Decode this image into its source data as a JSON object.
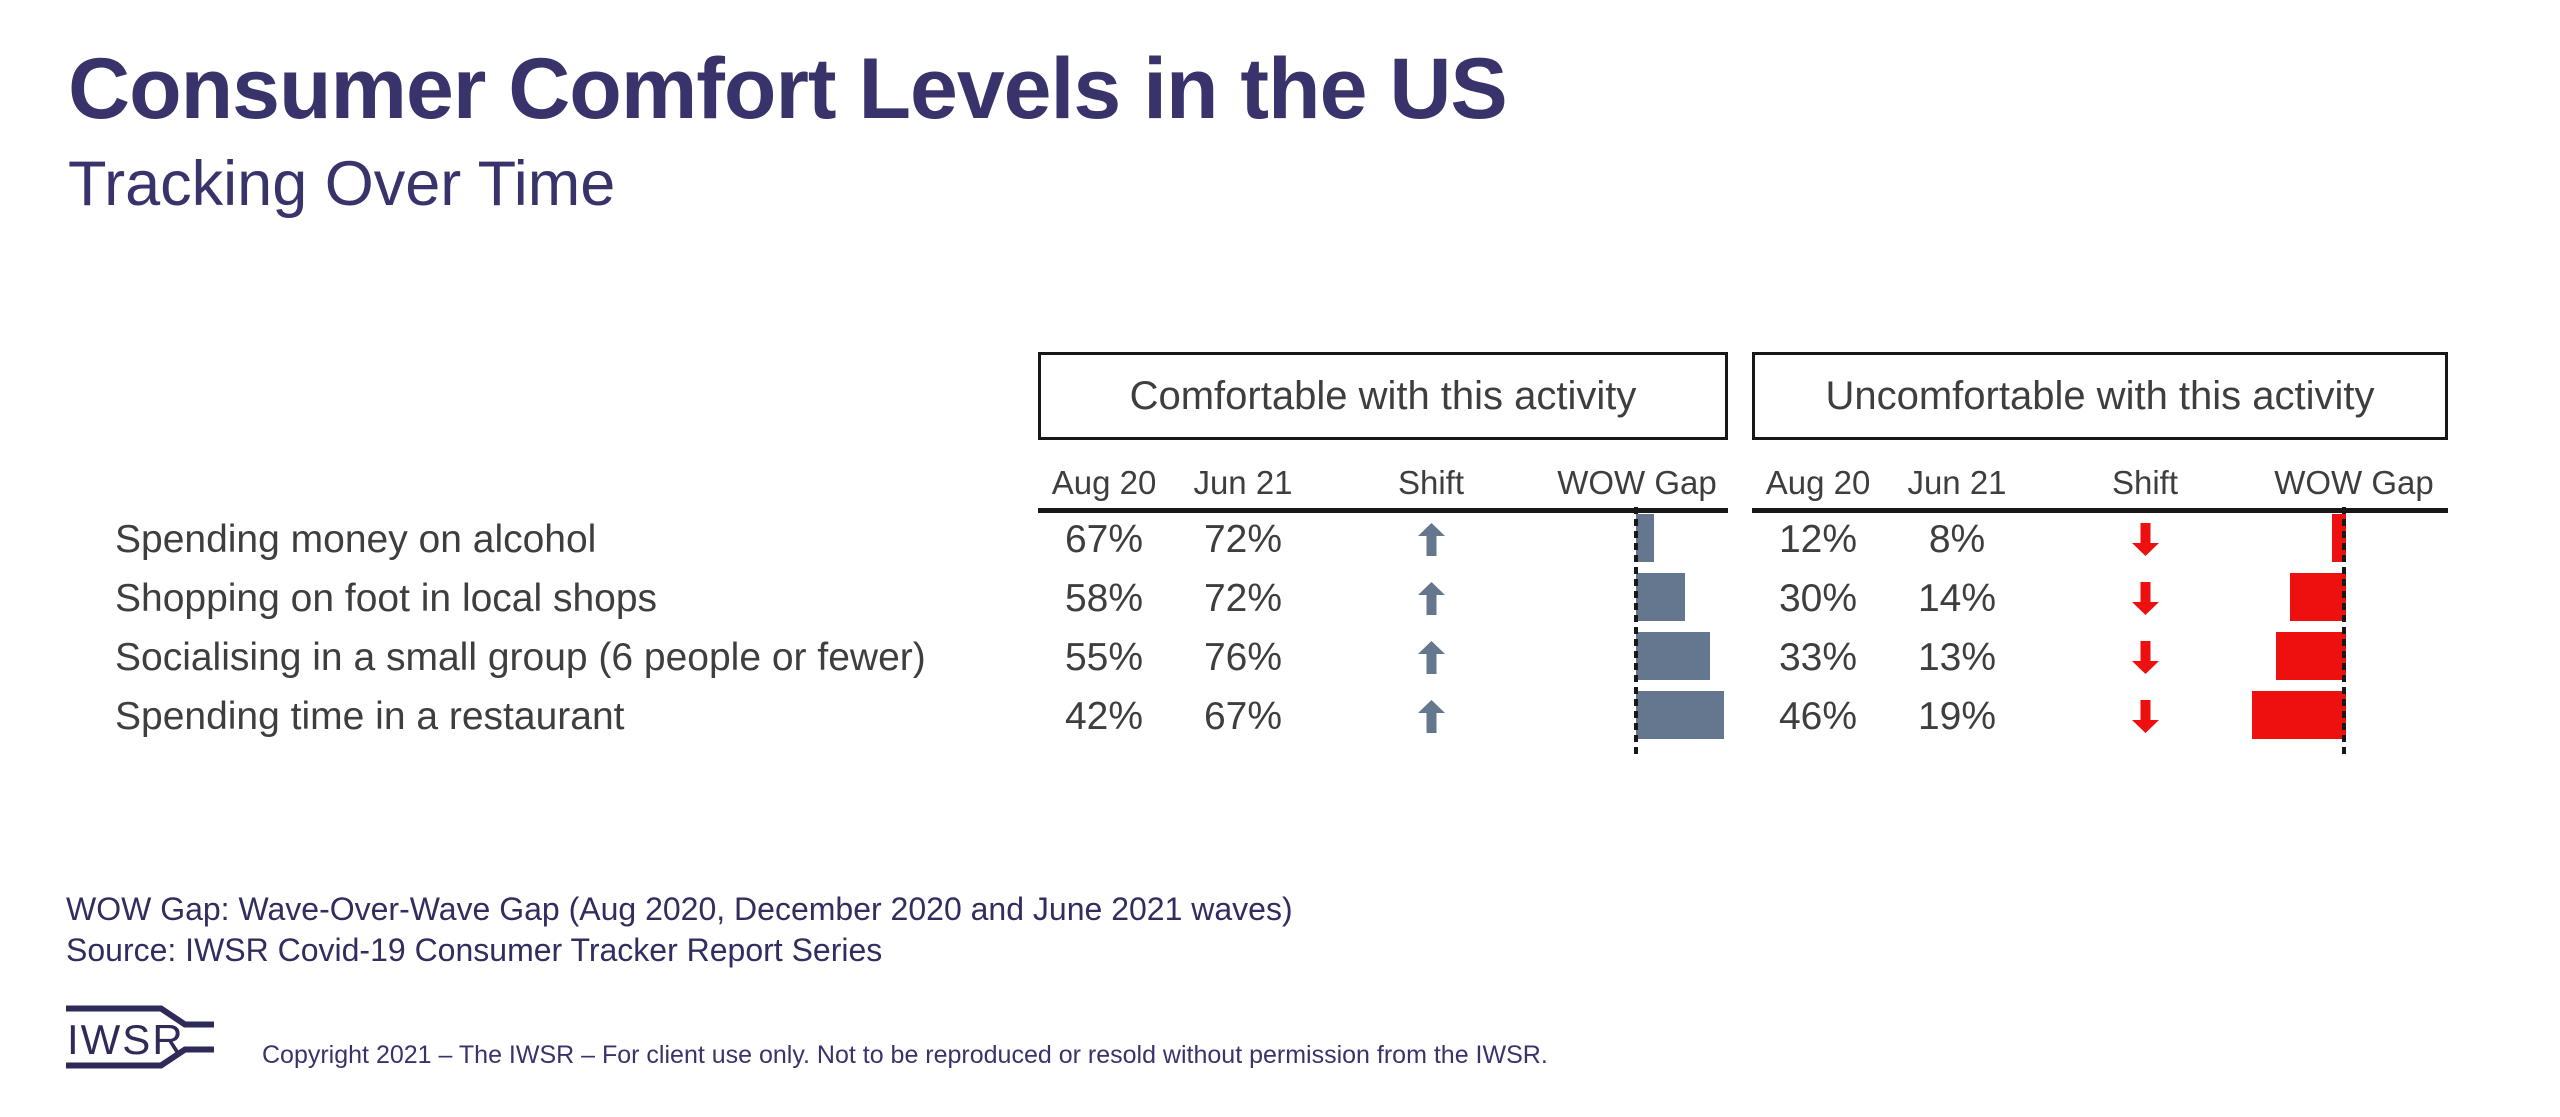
{
  "colors": {
    "navy": "#38346B",
    "text": "#3E3E3E",
    "slate": "#64778F",
    "red": "#EE0F0F",
    "line": "#181818"
  },
  "header": {
    "title": "Consumer Comfort Levels in the US",
    "subtitle": "Tracking Over Time"
  },
  "table": {
    "groups": [
      {
        "title": "Comfortable with this activity",
        "columns": [
          "Aug 20",
          "Jun 21",
          "Shift",
          "WOW Gap"
        ]
      },
      {
        "title": "Uncomfortable with this activity",
        "columns": [
          "Aug 20",
          "Jun 21",
          "Shift",
          "WOW Gap"
        ]
      }
    ],
    "rows": [
      {
        "label": "Spending money on alcohol",
        "comfortable": {
          "aug20": "67%",
          "jun21": "72%",
          "shift": "up"
        },
        "uncomfortable": {
          "aug20": "12%",
          "jun21": "8%",
          "shift": "down"
        }
      },
      {
        "label": "Shopping on foot in local shops",
        "comfortable": {
          "aug20": "58%",
          "jun21": "72%",
          "shift": "up"
        },
        "uncomfortable": {
          "aug20": "30%",
          "jun21": "14%",
          "shift": "down"
        }
      },
      {
        "label": "Socialising in a small group (6 people or fewer)",
        "comfortable": {
          "aug20": "55%",
          "jun21": "76%",
          "shift": "up"
        },
        "uncomfortable": {
          "aug20": "33%",
          "jun21": "13%",
          "shift": "down"
        }
      },
      {
        "label": "Spending time in a restaurant",
        "comfortable": {
          "aug20": "42%",
          "jun21": "67%",
          "shift": "up"
        },
        "uncomfortable": {
          "aug20": "46%",
          "jun21": "19%",
          "shift": "down"
        }
      }
    ]
  },
  "chart_data": {
    "type": "table",
    "title": "Consumer Comfort Levels in the US — Tracking Over Time",
    "row_labels": [
      "Spending money on alcohol",
      "Shopping on foot in local shops",
      "Socialising in a small group (6 people or fewer)",
      "Spending time in a restaurant"
    ],
    "series": [
      {
        "name": "Comfortable Aug 20 (%)",
        "values": [
          67,
          58,
          55,
          42
        ]
      },
      {
        "name": "Comfortable Jun 21 (%)",
        "values": [
          72,
          72,
          76,
          67
        ]
      },
      {
        "name": "Comfortable Shift",
        "values": [
          "up",
          "up",
          "up",
          "up"
        ]
      },
      {
        "name": "Comfortable WOW Gap (pts, bar right of baseline)",
        "values": [
          5,
          14,
          21,
          25
        ]
      },
      {
        "name": "Uncomfortable Aug 20 (%)",
        "values": [
          12,
          30,
          33,
          46
        ]
      },
      {
        "name": "Uncomfortable Jun 21 (%)",
        "values": [
          8,
          14,
          13,
          19
        ]
      },
      {
        "name": "Uncomfortable Shift",
        "values": [
          "down",
          "down",
          "down",
          "down"
        ]
      },
      {
        "name": "Uncomfortable WOW Gap (pts, bar left of baseline)",
        "values": [
          4,
          16,
          20,
          27
        ]
      }
    ],
    "layout_hints": {
      "comfortable_bar_color": "#64778F",
      "uncomfortable_bar_color": "#EE0F0F",
      "bars_anchored_to_dashed_baseline": true
    }
  },
  "footnotes": {
    "wow": "WOW Gap: Wave-Over-Wave Gap (Aug 2020, December 2020 and June 2021 waves)",
    "source": "Source: IWSR Covid-19 Consumer Tracker Report Series"
  },
  "footer": {
    "logo_text": "IWSR",
    "copyright": "Copyright 2021 – The IWSR – For client use only. Not to be reproduced or resold without permission from the IWSR."
  }
}
